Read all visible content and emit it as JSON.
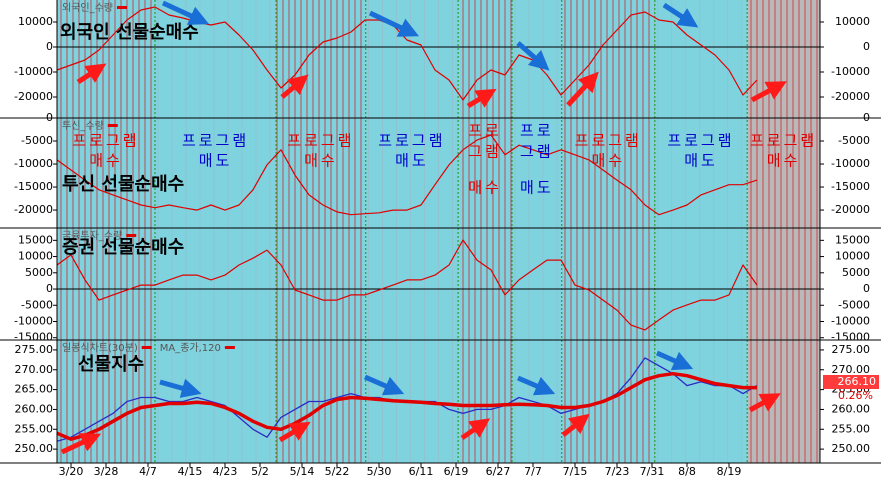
{
  "timeline": {
    "x": [
      0,
      2,
      4,
      6,
      8,
      10,
      12,
      14,
      16,
      18,
      20,
      22,
      24,
      26,
      28,
      30,
      32,
      34,
      36,
      38,
      40,
      42,
      44,
      46,
      48,
      50,
      52,
      54,
      56,
      58,
      60,
      62,
      64,
      66,
      68,
      70,
      72,
      74,
      76,
      78,
      80,
      82,
      84,
      86,
      88,
      90,
      92,
      94,
      96,
      98,
      100
    ],
    "xlim": [
      0,
      109
    ],
    "xticks": [
      {
        "value": 2,
        "label": "3/20"
      },
      {
        "value": 7,
        "label": "3/28"
      },
      {
        "value": 13,
        "label": "4/7"
      },
      {
        "value": 19,
        "label": "4/15"
      },
      {
        "value": 24,
        "label": "4/23"
      },
      {
        "value": 29,
        "label": "5/2"
      },
      {
        "value": 35,
        "label": "5/14"
      },
      {
        "value": 40,
        "label": "5/22"
      },
      {
        "value": 46,
        "label": "5/30"
      },
      {
        "value": 52,
        "label": "6/11"
      },
      {
        "value": 57,
        "label": "6/19"
      },
      {
        "value": 63,
        "label": "6/27"
      },
      {
        "value": 68,
        "label": "7/7"
      },
      {
        "value": 74,
        "label": "7/15"
      },
      {
        "value": 80,
        "label": "7/23"
      },
      {
        "value": 85,
        "label": "7/31"
      },
      {
        "value": 90,
        "label": "8/8"
      },
      {
        "value": 96,
        "label": "8/19"
      }
    ],
    "zones": [
      {
        "start": 0,
        "end": 14,
        "fill": "#7fd3de",
        "stripes": true,
        "label_color": "#e00000",
        "lines": [
          "프로그램",
          "매수"
        ]
      },
      {
        "start": 14,
        "end": 31.3,
        "fill": "#7fd3de",
        "stripes": false,
        "label_color": "#0000cc",
        "lines": [
          "프로그램",
          "매도"
        ]
      },
      {
        "start": 31.3,
        "end": 44.1,
        "fill": "#7fd3de",
        "stripes": true,
        "label_color": "#e00000",
        "lines": [
          "프로그램",
          "매수"
        ]
      },
      {
        "start": 44.1,
        "end": 57.3,
        "fill": "#7fd3de",
        "stripes": false,
        "label_color": "#0000cc",
        "lines": [
          "프로그램",
          "매도"
        ]
      },
      {
        "start": 57.3,
        "end": 65,
        "fill": "#7fd3de",
        "stripes": true,
        "label_color": "#e00000",
        "lines": [
          "프로",
          "그램",
          "매수"
        ]
      },
      {
        "start": 65,
        "end": 72.1,
        "fill": "#7fd3de",
        "stripes": false,
        "label_color": "#0000cc",
        "lines": [
          "프로",
          "그램",
          "매도"
        ]
      },
      {
        "start": 72.1,
        "end": 85.4,
        "fill": "#7fd3de",
        "stripes": true,
        "label_color": "#e00000",
        "lines": [
          "프로그램",
          "매수"
        ]
      },
      {
        "start": 85.4,
        "end": 98.6,
        "fill": "#7fd3de",
        "stripes": false,
        "label_color": "#0000cc",
        "lines": [
          "프로그램",
          "매도"
        ]
      },
      {
        "start": 98.6,
        "end": 109,
        "fill": "#b9b9b9",
        "stripes": true,
        "label_color": "#e00000",
        "lines": [
          "프로그램",
          "매수"
        ]
      }
    ]
  },
  "chart_data": [
    {
      "type": "line",
      "annotation": "외국인 선물순매수",
      "series": [
        {
          "name": "외국인_수량",
          "color": "#e00000",
          "values": [
            -9200,
            -7200,
            -5200,
            -1200,
            4800,
            10800,
            14800,
            16000,
            12800,
            11600,
            10000,
            8800,
            10000,
            4800,
            -1200,
            -9200,
            -16400,
            -11200,
            -3200,
            2000,
            3600,
            6000,
            10800,
            10800,
            8800,
            2800,
            800,
            -9200,
            -13200,
            -21200,
            -13200,
            -9200,
            -11200,
            -3200,
            -5200,
            -11200,
            -19200,
            -13200,
            -7200,
            800,
            6800,
            12800,
            14000,
            10800,
            10000,
            4800,
            800,
            -3200,
            -9200,
            -19200,
            -13200
          ]
        }
      ],
      "ylim": [
        -28400,
        18800
      ],
      "yticks": [
        -20000,
        -10000,
        0,
        10000
      ]
    },
    {
      "type": "line",
      "annotation": "투신 선물순매수",
      "series": [
        {
          "name": "투신_수량",
          "color": "#e00000",
          "values": [
            -9100,
            -11300,
            -13500,
            -15600,
            -16700,
            -17800,
            -18900,
            -19500,
            -18900,
            -19500,
            -20000,
            -18900,
            -20000,
            -18900,
            -15600,
            -10200,
            -6900,
            -12400,
            -16700,
            -18900,
            -20400,
            -21000,
            -20800,
            -20600,
            -20000,
            -20000,
            -18900,
            -14500,
            -10200,
            -6900,
            -4800,
            -3700,
            -8000,
            -5900,
            -6900,
            -8000,
            -6900,
            -8000,
            -9100,
            -11300,
            -13500,
            -15600,
            -18900,
            -21000,
            -20000,
            -18900,
            -16700,
            -15600,
            -14500,
            -14500,
            -13500
          ]
        }
      ],
      "ylim": [
        -23900,
        0
      ],
      "yticks": [
        -20000,
        -15000,
        -10000,
        -5000,
        0
      ]
    },
    {
      "type": "line",
      "annotation": "증권 선물순매수",
      "series": [
        {
          "name": "금융투자_수량",
          "color": "#e00000",
          "values": [
            7400,
            10500,
            2800,
            -3400,
            -1800,
            -300,
            1200,
            1200,
            2800,
            4300,
            4300,
            2800,
            4300,
            7400,
            9500,
            12000,
            7400,
            -300,
            -1800,
            -3400,
            -3400,
            -1800,
            -1800,
            -300,
            1200,
            2800,
            2800,
            4300,
            7400,
            15100,
            8900,
            5900,
            -1800,
            2800,
            5900,
            8900,
            8900,
            1200,
            -300,
            -3400,
            -6500,
            -11100,
            -12600,
            -9500,
            -6500,
            -4900,
            -3400,
            -3400,
            -1800,
            7400,
            1200
          ]
        }
      ],
      "ylim": [
        -15700,
        18800
      ],
      "yticks": [
        -15000,
        -10000,
        -5000,
        0,
        5000,
        10000,
        15000
      ]
    },
    {
      "type": "line",
      "annotation": "선물지수",
      "last_label": "266.10",
      "change_label": "0.26%",
      "series": [
        {
          "name": "일봉식차트(30분)",
          "color": "#2a2ac8",
          "width": 1.3,
          "values": [
            252,
            253,
            255,
            257,
            259,
            262,
            263,
            263,
            262,
            262,
            263,
            262,
            261,
            258,
            255,
            253,
            258,
            260,
            262,
            262,
            263,
            264,
            263,
            263,
            262,
            262,
            262,
            262,
            260,
            259,
            260,
            260,
            261,
            263,
            262,
            261,
            259,
            260,
            261,
            262,
            264,
            268,
            273,
            271,
            269,
            266,
            267,
            266,
            266,
            264,
            266
          ]
        },
        {
          "name": "MA_종가,120",
          "color": "#e00000",
          "width": 3.5,
          "values": [
            254,
            252.5,
            253.5,
            255,
            257,
            259,
            260.5,
            261,
            261.5,
            261.5,
            261.8,
            261.5,
            260.5,
            259,
            257,
            255.5,
            255,
            256.5,
            258.5,
            261,
            262.5,
            263,
            262.8,
            262.5,
            262.2,
            262,
            261.8,
            261.5,
            261.3,
            261,
            261,
            261,
            261.2,
            261.3,
            261.2,
            261,
            260.5,
            260.5,
            261,
            262,
            263.5,
            265.5,
            267.5,
            268.5,
            269,
            268.5,
            267.5,
            266.5,
            266,
            265.5,
            265.5
          ]
        }
      ],
      "ylim": [
        246.5,
        277.5
      ],
      "yticks": [
        {
          "value": 250,
          "label": "250.00"
        },
        {
          "value": 255,
          "label": "255.00"
        },
        {
          "value": 260,
          "label": "260.00"
        },
        {
          "value": 265,
          "label": "265.00"
        },
        {
          "value": 270,
          "label": "270.00"
        },
        {
          "value": 275,
          "label": "275.00"
        }
      ]
    }
  ]
}
